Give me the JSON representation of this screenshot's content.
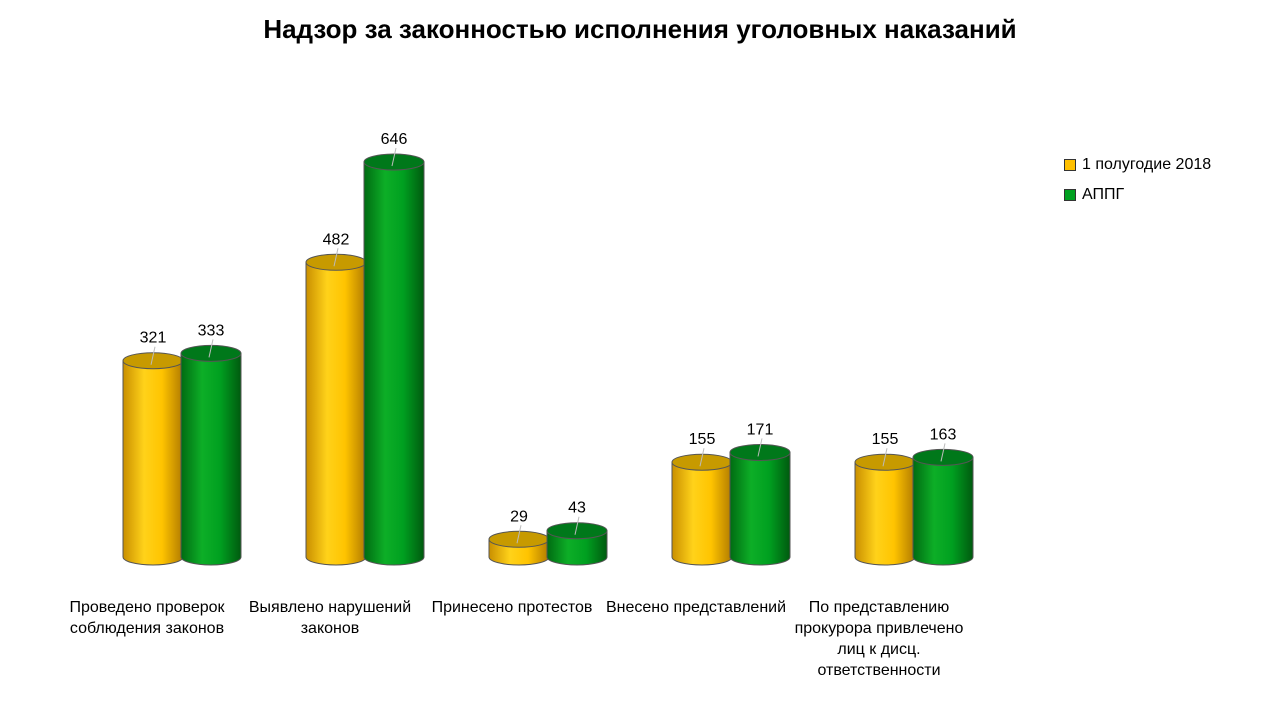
{
  "chart_data": {
    "type": "bar",
    "title": "Надзор за законностью исполнения уголовных наказаний",
    "categories": [
      "Проведено проверок соблюдения законов",
      "Выявлено нарушений законов",
      "Принесено протестов",
      "Внесено представлений",
      "По представлению прокурора привлечено лиц к дисц. ответственности"
    ],
    "series": [
      {
        "name": "1 полугодие 2018",
        "values": [
          321,
          482,
          29,
          155,
          155
        ],
        "color": "#FFC000"
      },
      {
        "name": "АППГ",
        "values": [
          333,
          646,
          43,
          171,
          163
        ],
        "color": "#00A020"
      }
    ],
    "ylim": [
      0,
      700
    ],
    "legend_position": "right",
    "grid": false,
    "bar_style": "3d-cylinder"
  }
}
